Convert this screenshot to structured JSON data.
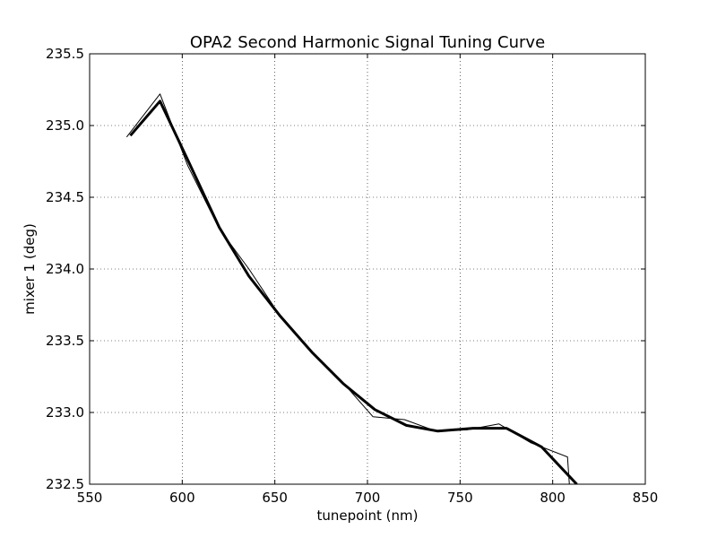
{
  "chart_data": {
    "type": "line",
    "title": "OPA2 Second Harmonic Signal Tuning Curve",
    "xlabel": "tunepoint (nm)",
    "ylabel": "mixer 1 (deg)",
    "xlim": [
      550,
      850
    ],
    "ylim": [
      232.5,
      235.5
    ],
    "xticks": [
      550,
      600,
      650,
      700,
      750,
      800,
      850
    ],
    "yticks": [
      232.5,
      233.0,
      233.5,
      234.0,
      234.5,
      235.0,
      235.5
    ],
    "xtick_labels": [
      "550",
      "600",
      "650",
      "700",
      "750",
      "800",
      "850"
    ],
    "ytick_labels": [
      "232.5",
      "233.0",
      "233.5",
      "234.0",
      "234.5",
      "235.0",
      "235.5"
    ],
    "grid": true,
    "series": [
      {
        "style": "thin",
        "color": "#000000",
        "x": [
          570,
          588,
          603,
          620,
          636,
          653,
          670,
          686,
          703,
          720,
          737,
          754,
          771,
          788,
          808,
          809
        ],
        "y": [
          234.92,
          235.22,
          234.72,
          234.28,
          234.0,
          233.67,
          233.42,
          233.22,
          232.97,
          232.95,
          232.87,
          232.88,
          232.92,
          232.79,
          232.69,
          232.5
        ]
      },
      {
        "style": "thick",
        "color": "#000000",
        "x": [
          572,
          588,
          603,
          620,
          636,
          653,
          670,
          687,
          704,
          721,
          738,
          757,
          775,
          794,
          813
        ],
        "y": [
          234.93,
          235.17,
          234.76,
          234.29,
          233.95,
          233.67,
          233.42,
          233.2,
          233.02,
          232.91,
          232.87,
          232.89,
          232.89,
          232.76,
          232.5
        ]
      }
    ]
  }
}
